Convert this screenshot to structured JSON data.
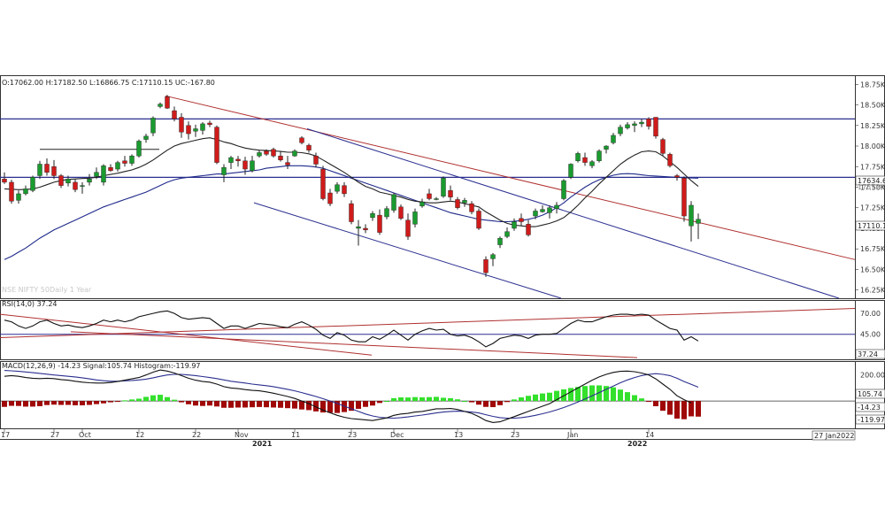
{
  "colors": {
    "up": "#1a9b2f",
    "down": "#d01b1b",
    "ma_fast": "#222222",
    "ma_slow": "#1f2a8a",
    "trend_red": "#b03030",
    "trend_blue": "#2b2f8f",
    "macd_pos": "#33e02c",
    "macd_neg": "#a00808",
    "watermark": "#c8c8c8"
  },
  "price_panel": {
    "header": "O:17062.00  H:17182.50  L:16866.75  C:17110.15  UC:-167.80",
    "watermark": "NSE NIFTY 50Daily 1 Year",
    "y_ticks": [
      "18.75K",
      "18.50K",
      "18.25K",
      "18.00K",
      "17.75K",
      "17.50K",
      "17.25K",
      "17.00K",
      "16.75K",
      "16.50K",
      "16.25K"
    ],
    "y_tick_values": [
      18750,
      18500,
      18250,
      18000,
      17750,
      17500,
      17250,
      17000,
      16750,
      16500,
      16250
    ],
    "last_tag": "17110.1",
    "resistance_tag": "17634.6",
    "resistance_tag_2": "17572.4"
  },
  "rsi_panel": {
    "header": "RSI(14,0) 37.24",
    "y_ticks": [
      "70.00",
      "45.00"
    ],
    "y_tick_values": [
      70,
      45
    ],
    "last_tag": "37.24"
  },
  "macd_panel": {
    "header": "MACD(12,26,9) -14.23  Signal:105.74  Histogram:-119.97",
    "y_ticks": [
      "200.00"
    ],
    "y_tick_values": [
      200
    ],
    "tag_signal": "105.74",
    "tag_macd": "-14.23",
    "tag_hist": "-119.97"
  },
  "x_axis": {
    "ticks": [
      "17",
      "27",
      "Oct",
      "12",
      "22",
      "Nov",
      "11",
      "23",
      "Dec",
      "13",
      "23",
      "Jan",
      "14"
    ],
    "years": [
      "2021",
      "2022"
    ],
    "date_box": "27 Jan2022"
  },
  "chart_data": {
    "type": "candlestick",
    "title": "",
    "ylim": [
      16150,
      18850
    ],
    "candles": [
      {
        "o": 17600,
        "h": 17680,
        "l": 17540,
        "c": 17560
      },
      {
        "o": 17560,
        "h": 17590,
        "l": 17300,
        "c": 17330
      },
      {
        "o": 17340,
        "h": 17460,
        "l": 17300,
        "c": 17420
      },
      {
        "o": 17420,
        "h": 17520,
        "l": 17400,
        "c": 17480
      },
      {
        "o": 17460,
        "h": 17640,
        "l": 17440,
        "c": 17620
      },
      {
        "o": 17640,
        "h": 17820,
        "l": 17600,
        "c": 17780
      },
      {
        "o": 17780,
        "h": 17850,
        "l": 17640,
        "c": 17680
      },
      {
        "o": 17750,
        "h": 17830,
        "l": 17600,
        "c": 17640
      },
      {
        "o": 17640,
        "h": 17660,
        "l": 17490,
        "c": 17520
      },
      {
        "o": 17550,
        "h": 17640,
        "l": 17510,
        "c": 17600
      },
      {
        "o": 17560,
        "h": 17600,
        "l": 17440,
        "c": 17470
      },
      {
        "o": 17520,
        "h": 17560,
        "l": 17420,
        "c": 17520
      },
      {
        "o": 17560,
        "h": 17660,
        "l": 17520,
        "c": 17600
      },
      {
        "o": 17630,
        "h": 17740,
        "l": 17600,
        "c": 17680
      },
      {
        "o": 17560,
        "h": 17780,
        "l": 17520,
        "c": 17760
      },
      {
        "o": 17740,
        "h": 17780,
        "l": 17690,
        "c": 17700
      },
      {
        "o": 17720,
        "h": 17820,
        "l": 17690,
        "c": 17800
      },
      {
        "o": 17820,
        "h": 17880,
        "l": 17750,
        "c": 17790
      },
      {
        "o": 17790,
        "h": 17900,
        "l": 17760,
        "c": 17880
      },
      {
        "o": 17880,
        "h": 18080,
        "l": 17860,
        "c": 18060
      },
      {
        "o": 18080,
        "h": 18150,
        "l": 18040,
        "c": 18120
      },
      {
        "o": 18160,
        "h": 18360,
        "l": 18120,
        "c": 18340
      },
      {
        "o": 18480,
        "h": 18530,
        "l": 18460,
        "c": 18510
      },
      {
        "o": 18600,
        "h": 18620,
        "l": 18450,
        "c": 18460
      },
      {
        "o": 18430,
        "h": 18480,
        "l": 18300,
        "c": 18330
      },
      {
        "o": 18350,
        "h": 18400,
        "l": 18100,
        "c": 18170
      },
      {
        "o": 18250,
        "h": 18300,
        "l": 18080,
        "c": 18150
      },
      {
        "o": 18180,
        "h": 18260,
        "l": 18110,
        "c": 18210
      },
      {
        "o": 18190,
        "h": 18290,
        "l": 18140,
        "c": 18270
      },
      {
        "o": 18280,
        "h": 18310,
        "l": 18230,
        "c": 18260
      },
      {
        "o": 18230,
        "h": 18250,
        "l": 17780,
        "c": 17800
      },
      {
        "o": 17650,
        "h": 17780,
        "l": 17560,
        "c": 17740
      },
      {
        "o": 17800,
        "h": 17880,
        "l": 17720,
        "c": 17860
      },
      {
        "o": 17840,
        "h": 17880,
        "l": 17750,
        "c": 17820
      },
      {
        "o": 17820,
        "h": 17870,
        "l": 17650,
        "c": 17720
      },
      {
        "o": 17700,
        "h": 17880,
        "l": 17680,
        "c": 17820
      },
      {
        "o": 17880,
        "h": 17950,
        "l": 17860,
        "c": 17920
      },
      {
        "o": 17940,
        "h": 17960,
        "l": 17880,
        "c": 17900
      },
      {
        "o": 17960,
        "h": 17980,
        "l": 17860,
        "c": 17880
      },
      {
        "o": 17880,
        "h": 17930,
        "l": 17810,
        "c": 17830
      },
      {
        "o": 17800,
        "h": 17880,
        "l": 17720,
        "c": 17770
      },
      {
        "o": 17880,
        "h": 17960,
        "l": 17870,
        "c": 17940
      },
      {
        "o": 18100,
        "h": 18120,
        "l": 18020,
        "c": 18040
      },
      {
        "o": 18010,
        "h": 18030,
        "l": 17920,
        "c": 17950
      },
      {
        "o": 17880,
        "h": 17920,
        "l": 17740,
        "c": 17780
      },
      {
        "o": 17720,
        "h": 17760,
        "l": 17340,
        "c": 17360
      },
      {
        "o": 17430,
        "h": 17480,
        "l": 17270,
        "c": 17300
      },
      {
        "o": 17450,
        "h": 17560,
        "l": 17420,
        "c": 17530
      },
      {
        "o": 17520,
        "h": 17560,
        "l": 17380,
        "c": 17420
      },
      {
        "o": 17300,
        "h": 17340,
        "l": 17050,
        "c": 17080
      },
      {
        "o": 17000,
        "h": 17100,
        "l": 16790,
        "c": 17020
      },
      {
        "o": 17000,
        "h": 17050,
        "l": 16940,
        "c": 16980
      },
      {
        "o": 17130,
        "h": 17210,
        "l": 17090,
        "c": 17180
      },
      {
        "o": 17160,
        "h": 17230,
        "l": 16920,
        "c": 16950
      },
      {
        "o": 17140,
        "h": 17270,
        "l": 17110,
        "c": 17240
      },
      {
        "o": 17220,
        "h": 17430,
        "l": 17190,
        "c": 17410
      },
      {
        "o": 17260,
        "h": 17290,
        "l": 17100,
        "c": 17120
      },
      {
        "o": 17100,
        "h": 17180,
        "l": 16860,
        "c": 16900
      },
      {
        "o": 17050,
        "h": 17240,
        "l": 17010,
        "c": 17200
      },
      {
        "o": 17270,
        "h": 17360,
        "l": 17250,
        "c": 17320
      },
      {
        "o": 17420,
        "h": 17480,
        "l": 17340,
        "c": 17360
      },
      {
        "o": 17360,
        "h": 17380,
        "l": 17340,
        "c": 17360
      },
      {
        "o": 17390,
        "h": 17630,
        "l": 17370,
        "c": 17610
      },
      {
        "o": 17460,
        "h": 17520,
        "l": 17340,
        "c": 17380
      },
      {
        "o": 17350,
        "h": 17380,
        "l": 17230,
        "c": 17250
      },
      {
        "o": 17310,
        "h": 17370,
        "l": 17260,
        "c": 17340
      },
      {
        "o": 17300,
        "h": 17330,
        "l": 17170,
        "c": 17200
      },
      {
        "o": 17210,
        "h": 17240,
        "l": 16980,
        "c": 17000
      },
      {
        "o": 16620,
        "h": 16660,
        "l": 16410,
        "c": 16460
      },
      {
        "o": 16630,
        "h": 16700,
        "l": 16540,
        "c": 16680
      },
      {
        "o": 16800,
        "h": 16900,
        "l": 16760,
        "c": 16880
      },
      {
        "o": 16900,
        "h": 17010,
        "l": 16880,
        "c": 16960
      },
      {
        "o": 17000,
        "h": 17120,
        "l": 16970,
        "c": 17080
      },
      {
        "o": 17120,
        "h": 17180,
        "l": 17030,
        "c": 17080
      },
      {
        "o": 17050,
        "h": 17100,
        "l": 16900,
        "c": 16920
      },
      {
        "o": 17150,
        "h": 17240,
        "l": 17110,
        "c": 17210
      },
      {
        "o": 17200,
        "h": 17280,
        "l": 17190,
        "c": 17230
      },
      {
        "o": 17190,
        "h": 17280,
        "l": 17120,
        "c": 17250
      },
      {
        "o": 17240,
        "h": 17320,
        "l": 17180,
        "c": 17280
      },
      {
        "o": 17360,
        "h": 17600,
        "l": 17340,
        "c": 17580
      },
      {
        "o": 17620,
        "h": 17790,
        "l": 17600,
        "c": 17780
      },
      {
        "o": 17820,
        "h": 17930,
        "l": 17800,
        "c": 17910
      },
      {
        "o": 17860,
        "h": 17920,
        "l": 17760,
        "c": 17800
      },
      {
        "o": 17760,
        "h": 17830,
        "l": 17730,
        "c": 17810
      },
      {
        "o": 17820,
        "h": 17960,
        "l": 17800,
        "c": 17940
      },
      {
        "o": 17960,
        "h": 18010,
        "l": 17910,
        "c": 18000
      },
      {
        "o": 18040,
        "h": 18160,
        "l": 18020,
        "c": 18130
      },
      {
        "o": 18150,
        "h": 18260,
        "l": 18120,
        "c": 18230
      },
      {
        "o": 18220,
        "h": 18290,
        "l": 18200,
        "c": 18260
      },
      {
        "o": 18250,
        "h": 18300,
        "l": 18170,
        "c": 18270
      },
      {
        "o": 18270,
        "h": 18330,
        "l": 18230,
        "c": 18290
      },
      {
        "o": 18330,
        "h": 18350,
        "l": 18200,
        "c": 18240
      },
      {
        "o": 18350,
        "h": 18350,
        "l": 18090,
        "c": 18120
      },
      {
        "o": 18080,
        "h": 18100,
        "l": 17880,
        "c": 17910
      },
      {
        "o": 17900,
        "h": 17920,
        "l": 17740,
        "c": 17760
      },
      {
        "o": 17640,
        "h": 17660,
        "l": 17580,
        "c": 17620
      },
      {
        "o": 17610,
        "h": 17630,
        "l": 17080,
        "c": 17150
      },
      {
        "o": 17030,
        "h": 17330,
        "l": 16840,
        "c": 17280
      },
      {
        "o": 17060,
        "h": 17180,
        "l": 16870,
        "c": 17110
      }
    ],
    "ma_fast": [
      17480,
      17475,
      17470,
      17472,
      17480,
      17500,
      17530,
      17560,
      17580,
      17595,
      17600,
      17605,
      17610,
      17620,
      17640,
      17655,
      17670,
      17690,
      17710,
      17740,
      17780,
      17830,
      17890,
      17950,
      18000,
      18030,
      18050,
      18070,
      18090,
      18100,
      18080,
      18050,
      18030,
      18000,
      17975,
      17960,
      17950,
      17945,
      17940,
      17935,
      17925,
      17925,
      17920,
      17905,
      17880,
      17830,
      17780,
      17730,
      17680,
      17620,
      17560,
      17510,
      17480,
      17440,
      17420,
      17400,
      17380,
      17350,
      17330,
      17320,
      17310,
      17310,
      17320,
      17330,
      17320,
      17300,
      17280,
      17260,
      17200,
      17150,
      17100,
      17060,
      17040,
      17030,
      17020,
      17020,
      17040,
      17060,
      17090,
      17130,
      17200,
      17280,
      17370,
      17450,
      17540,
      17620,
      17700,
      17780,
      17840,
      17890,
      17930,
      17940,
      17930,
      17880,
      17810,
      17740,
      17660,
      17580,
      17510
    ],
    "ma_slow": [
      16620,
      16660,
      16710,
      16760,
      16820,
      16880,
      16930,
      16980,
      17020,
      17060,
      17100,
      17140,
      17180,
      17220,
      17260,
      17290,
      17320,
      17350,
      17380,
      17410,
      17440,
      17480,
      17520,
      17560,
      17590,
      17610,
      17620,
      17630,
      17640,
      17650,
      17660,
      17660,
      17670,
      17680,
      17690,
      17700,
      17710,
      17730,
      17740,
      17750,
      17760,
      17760,
      17760,
      17755,
      17745,
      17730,
      17700,
      17670,
      17640,
      17610,
      17580,
      17550,
      17520,
      17490,
      17460,
      17430,
      17400,
      17370,
      17340,
      17310,
      17280,
      17250,
      17220,
      17190,
      17170,
      17150,
      17130,
      17110,
      17100,
      17090,
      17080,
      17080,
      17085,
      17095,
      17110,
      17130,
      17160,
      17200,
      17250,
      17310,
      17380,
      17440,
      17500,
      17550,
      17590,
      17620,
      17645,
      17660,
      17665,
      17660,
      17650,
      17640,
      17635,
      17630,
      17625,
      17620,
      17615,
      17612,
      17610
    ],
    "resistance_levels": [
      18330,
      17620
    ],
    "rsi": [
      62,
      60,
      55,
      52,
      55,
      60,
      62,
      58,
      55,
      56,
      54,
      53,
      55,
      58,
      62,
      60,
      62,
      60,
      62,
      66,
      68,
      70,
      72,
      73,
      70,
      65,
      63,
      64,
      65,
      64,
      58,
      52,
      55,
      55,
      52,
      55,
      58,
      57,
      56,
      54,
      53,
      57,
      60,
      56,
      51,
      44,
      40,
      47,
      44,
      38,
      36,
      36,
      42,
      39,
      44,
      50,
      44,
      38,
      45,
      49,
      52,
      50,
      51,
      45,
      43,
      44,
      41,
      36,
      30,
      34,
      40,
      42,
      44,
      43,
      40,
      44,
      45,
      45,
      46,
      52,
      58,
      62,
      60,
      60,
      63,
      66,
      68,
      69,
      69,
      68,
      69,
      68,
      62,
      57,
      52,
      50,
      38,
      42,
      37
    ],
    "macd": [
      190,
      195,
      190,
      180,
      175,
      172,
      175,
      172,
      165,
      160,
      152,
      145,
      140,
      138,
      138,
      142,
      150,
      160,
      170,
      180,
      200,
      222,
      238,
      230,
      215,
      195,
      175,
      160,
      150,
      145,
      130,
      110,
      100,
      95,
      88,
      82,
      78,
      70,
      60,
      48,
      35,
      20,
      0,
      -20,
      -45,
      -70,
      -90,
      -110,
      -125,
      -135,
      -140,
      -145,
      -150,
      -140,
      -130,
      -110,
      -100,
      -95,
      -85,
      -80,
      -70,
      -60,
      -60,
      -58,
      -65,
      -80,
      -95,
      -120,
      -150,
      -165,
      -160,
      -140,
      -120,
      -100,
      -80,
      -60,
      -40,
      -20,
      10,
      40,
      70,
      100,
      130,
      160,
      185,
      205,
      220,
      228,
      230,
      225,
      215,
      200,
      170,
      130,
      90,
      40,
      10,
      -14
    ],
    "macd_signal": [
      235,
      232,
      228,
      223,
      218,
      212,
      206,
      200,
      195,
      190,
      185,
      178,
      170,
      162,
      156,
      152,
      152,
      155,
      158,
      162,
      168,
      178,
      190,
      200,
      205,
      205,
      200,
      195,
      188,
      180,
      172,
      162,
      152,
      145,
      138,
      130,
      124,
      118,
      110,
      100,
      90,
      78,
      65,
      50,
      35,
      18,
      0,
      -18,
      -40,
      -60,
      -80,
      -100,
      -115,
      -125,
      -130,
      -132,
      -128,
      -122,
      -115,
      -108,
      -100,
      -92,
      -85,
      -80,
      -78,
      -80,
      -85,
      -92,
      -105,
      -118,
      -128,
      -132,
      -132,
      -128,
      -120,
      -110,
      -98,
      -84,
      -68,
      -50,
      -30,
      -8,
      15,
      40,
      65,
      90,
      115,
      140,
      162,
      180,
      195,
      205,
      210,
      205,
      195,
      175,
      150,
      128,
      106
    ],
    "macd_histogram": [
      -45,
      -37,
      -38,
      -43,
      -43,
      -40,
      -31,
      -28,
      -30,
      -30,
      -33,
      -33,
      -30,
      -24,
      -18,
      -10,
      -2,
      5,
      12,
      18,
      32,
      44,
      48,
      30,
      10,
      -10,
      -25,
      -35,
      -38,
      -35,
      -42,
      -52,
      -52,
      -50,
      -50,
      -48,
      -46,
      -48,
      -50,
      -52,
      -55,
      -58,
      -65,
      -70,
      -80,
      -88,
      -90,
      -92,
      -85,
      -75,
      -60,
      -45,
      -35,
      -15,
      0,
      22,
      28,
      27,
      30,
      28,
      30,
      32,
      25,
      22,
      13,
      0,
      -10,
      -28,
      -45,
      -47,
      -32,
      -8,
      12,
      28,
      40,
      50,
      58,
      64,
      78,
      90,
      100,
      108,
      115,
      120,
      120,
      115,
      105,
      88,
      68,
      45,
      20,
      -5,
      -40,
      -75,
      -105,
      -135,
      -140,
      -118,
      -120
    ]
  }
}
